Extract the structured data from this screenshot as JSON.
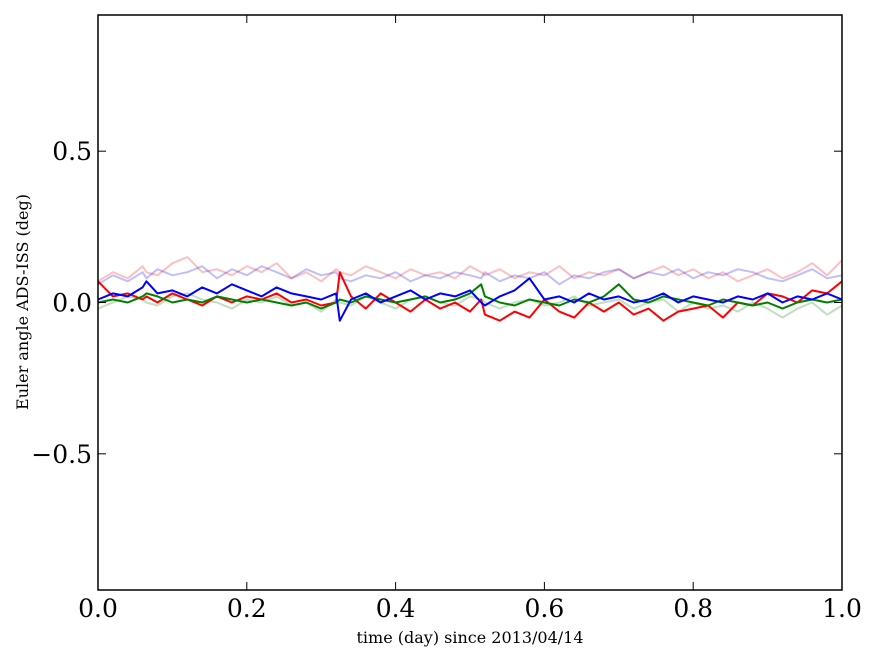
{
  "chart_data": {
    "type": "line",
    "title": "",
    "xlabel": "time (day) since 2013/04/14",
    "ylabel": "Euler angle ADS-ISS (deg)",
    "xlim": [
      0.0,
      1.0
    ],
    "ylim": [
      -0.95,
      0.95
    ],
    "xticks": [
      0.0,
      0.2,
      0.4,
      0.6,
      0.8,
      1.0
    ],
    "xtick_labels": [
      "0.0",
      "0.2",
      "0.4",
      "0.6",
      "0.8",
      "1.0"
    ],
    "yticks": [
      -0.5,
      0.0,
      0.5
    ],
    "ytick_labels": [
      "−0.5",
      "0.0",
      "0.5"
    ],
    "grid": false,
    "legend": "none",
    "x": [
      0.0,
      0.02,
      0.04,
      0.06,
      0.065,
      0.08,
      0.1,
      0.12,
      0.14,
      0.16,
      0.18,
      0.2,
      0.22,
      0.24,
      0.26,
      0.28,
      0.3,
      0.32,
      0.325,
      0.34,
      0.36,
      0.38,
      0.4,
      0.42,
      0.44,
      0.46,
      0.48,
      0.5,
      0.515,
      0.52,
      0.54,
      0.56,
      0.58,
      0.6,
      0.62,
      0.64,
      0.66,
      0.68,
      0.7,
      0.72,
      0.74,
      0.76,
      0.78,
      0.8,
      0.82,
      0.84,
      0.86,
      0.88,
      0.9,
      0.92,
      0.94,
      0.96,
      0.98,
      1.0
    ],
    "series": [
      {
        "color": "#ff0000",
        "opacity": 0.25,
        "values": [
          0.07,
          0.1,
          0.08,
          0.12,
          0.1,
          0.09,
          0.13,
          0.15,
          0.1,
          0.11,
          0.09,
          0.12,
          0.1,
          0.13,
          0.08,
          0.1,
          0.07,
          0.11,
          0.1,
          0.09,
          0.12,
          0.1,
          0.08,
          0.11,
          0.09,
          0.1,
          0.08,
          0.12,
          0.1,
          0.09,
          0.11,
          0.08,
          0.1,
          0.09,
          0.12,
          0.08,
          0.1,
          0.09,
          0.11,
          0.08,
          0.1,
          0.12,
          0.09,
          0.11,
          0.08,
          0.1,
          0.07,
          0.09,
          0.11,
          0.08,
          0.1,
          0.13,
          0.09,
          0.14
        ]
      },
      {
        "color": "#008000",
        "opacity": 0.25,
        "values": [
          -0.02,
          0.0,
          0.02,
          0.01,
          0.0,
          -0.01,
          0.02,
          0.03,
          0.01,
          0.0,
          -0.02,
          0.01,
          0.0,
          0.02,
          -0.01,
          0.0,
          -0.03,
          0.01,
          0.0,
          -0.01,
          0.02,
          0.0,
          -0.02,
          0.01,
          0.02,
          0.0,
          -0.01,
          0.02,
          0.01,
          0.0,
          -0.02,
          0.0,
          0.01,
          -0.01,
          0.0,
          0.02,
          -0.01,
          0.0,
          0.01,
          -0.02,
          0.0,
          0.01,
          -0.03,
          0.0,
          -0.02,
          -0.01,
          -0.03,
          0.0,
          -0.02,
          -0.05,
          -0.02,
          0.0,
          -0.04,
          -0.01
        ]
      },
      {
        "color": "#0000ff",
        "opacity": 0.25,
        "values": [
          0.06,
          0.09,
          0.07,
          0.1,
          0.08,
          0.11,
          0.09,
          0.1,
          0.12,
          0.08,
          0.11,
          0.09,
          0.12,
          0.1,
          0.08,
          0.11,
          0.09,
          0.1,
          0.08,
          0.07,
          0.09,
          0.08,
          0.1,
          0.07,
          0.09,
          0.08,
          0.1,
          0.09,
          0.08,
          0.1,
          0.07,
          0.09,
          0.08,
          0.1,
          0.06,
          0.09,
          0.08,
          0.1,
          0.11,
          0.08,
          0.1,
          0.09,
          0.11,
          0.08,
          0.1,
          0.09,
          0.11,
          0.1,
          0.08,
          0.07,
          0.09,
          0.11,
          0.08,
          0.09
        ]
      },
      {
        "color": "#ff0000",
        "opacity": 1,
        "values": [
          0.07,
          0.02,
          0.03,
          0.01,
          0.02,
          0.0,
          0.03,
          0.01,
          -0.01,
          0.02,
          0.0,
          0.02,
          0.01,
          0.03,
          0.0,
          0.01,
          -0.01,
          0.0,
          0.1,
          0.02,
          -0.02,
          0.03,
          0.0,
          -0.03,
          0.01,
          -0.02,
          0.0,
          -0.03,
          0.01,
          -0.04,
          -0.06,
          -0.03,
          -0.05,
          0.01,
          -0.03,
          -0.05,
          0.0,
          -0.03,
          0.0,
          -0.04,
          -0.02,
          -0.06,
          -0.03,
          -0.02,
          -0.01,
          -0.05,
          0.0,
          -0.01,
          0.03,
          0.02,
          0.0,
          0.04,
          0.03,
          0.07
        ]
      },
      {
        "color": "#008000",
        "opacity": 1,
        "values": [
          0.0,
          0.01,
          0.0,
          0.02,
          0.03,
          0.02,
          0.0,
          0.01,
          0.0,
          0.02,
          0.01,
          0.0,
          0.01,
          0.0,
          -0.01,
          0.0,
          -0.02,
          0.0,
          0.01,
          0.0,
          0.02,
          0.01,
          0.0,
          0.01,
          0.02,
          0.0,
          0.01,
          0.03,
          0.06,
          0.02,
          0.0,
          -0.01,
          0.01,
          0.0,
          -0.01,
          0.01,
          0.0,
          0.02,
          0.06,
          0.01,
          0.0,
          0.02,
          0.01,
          0.0,
          -0.01,
          0.01,
          0.0,
          -0.01,
          0.0,
          -0.02,
          0.0,
          0.01,
          0.0,
          0.01
        ]
      },
      {
        "color": "#0000ff",
        "opacity": 1,
        "values": [
          0.01,
          0.03,
          0.02,
          0.05,
          0.07,
          0.03,
          0.04,
          0.02,
          0.05,
          0.03,
          0.06,
          0.04,
          0.02,
          0.05,
          0.03,
          0.02,
          0.01,
          0.03,
          -0.06,
          0.01,
          0.03,
          0.0,
          0.02,
          0.04,
          0.01,
          0.03,
          0.02,
          0.04,
          0.0,
          -0.01,
          0.02,
          0.04,
          0.08,
          0.01,
          0.02,
          0.0,
          0.03,
          0.01,
          0.02,
          0.0,
          0.01,
          0.03,
          0.0,
          0.02,
          0.01,
          0.0,
          0.02,
          0.01,
          0.03,
          0.0,
          0.02,
          0.01,
          0.03,
          0.01
        ]
      }
    ]
  }
}
